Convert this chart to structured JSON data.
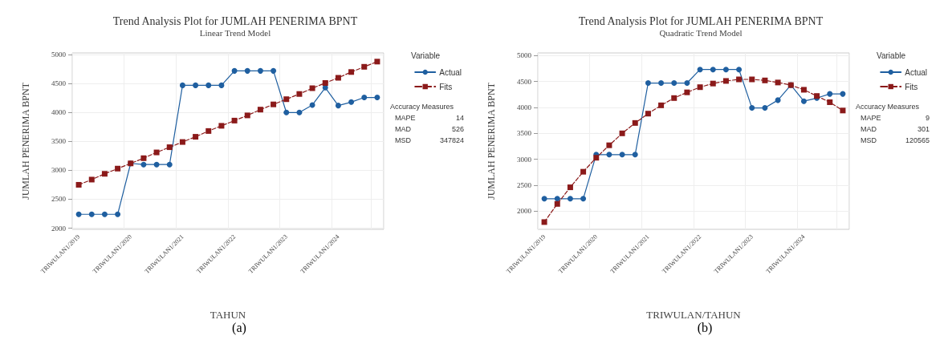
{
  "chart_data": [
    {
      "type": "line",
      "title": "Trend Analysis Plot for JUMLAH PENERIMA BPNT",
      "subtitle": "Linear Trend Model",
      "xlabel": "TAHUN",
      "ylabel": "JUMLAH PENERIMA BPNT",
      "legend_title": "Variable",
      "legend": "right",
      "grid": true,
      "categories": [
        "TRIWULAN1/2019",
        null,
        null,
        null,
        "TRIWULAN1/2020",
        null,
        null,
        null,
        "TRIWULAN1/2021",
        null,
        null,
        null,
        "TRIWULAN1/2022",
        null,
        null,
        null,
        "TRIWULAN1/2023",
        null,
        null,
        null,
        "TRIWULAN1/2024",
        null,
        null,
        null
      ],
      "ylim": [
        1980,
        5030
      ],
      "yticks": [
        2000,
        2500,
        3000,
        3500,
        4000,
        4500,
        5000
      ],
      "series": [
        {
          "name": "Actual",
          "color": "#1f5fa0",
          "marker": "circle",
          "line_style": "solid",
          "values": [
            2240,
            2240,
            2240,
            2240,
            3120,
            3100,
            3100,
            3100,
            4470,
            4470,
            4470,
            4470,
            4720,
            4720,
            4720,
            4720,
            4000,
            4000,
            4130,
            4430,
            4120,
            4180,
            4260,
            4260
          ]
        },
        {
          "name": "Fits",
          "color": "#8b1a1a",
          "marker": "square",
          "line_style": "dashed",
          "values": [
            2750,
            2840,
            2940,
            3030,
            3120,
            3210,
            3310,
            3400,
            3490,
            3580,
            3680,
            3770,
            3860,
            3950,
            4050,
            4140,
            4230,
            4320,
            4420,
            4510,
            4600,
            4700,
            4790,
            4880
          ]
        }
      ],
      "annotations": [
        "Accuracy Measures",
        "MAPE 14",
        "MAD 526",
        "MSD 347824",
        "(a)"
      ]
    },
    {
      "type": "line",
      "title": "Trend Analysis Plot for JUMLAH PENERIMA BPNT",
      "subtitle": "Quadratic Trend Model",
      "xlabel": "TRIWULAN/TAHUN",
      "ylabel": "JUMLAH PENERIMA BPNT",
      "legend_title": "Variable",
      "legend": "right",
      "grid": true,
      "categories": [
        "TRIWULAN1/2019",
        null,
        null,
        null,
        "TRIWULAN1/2020",
        null,
        null,
        null,
        "TRIWULAN1/2021",
        null,
        null,
        null,
        "TRIWULAN1/2022",
        null,
        null,
        null,
        "TRIWULAN1/2023",
        null,
        null,
        null,
        "TRIWULAN1/2024",
        null,
        null,
        null
      ],
      "ylim": [
        1650,
        5050
      ],
      "yticks": [
        2000,
        2500,
        3000,
        3500,
        4000,
        4500,
        5000
      ],
      "series": [
        {
          "name": "Actual",
          "color": "#1f5fa0",
          "marker": "circle",
          "line_style": "solid",
          "values": [
            2240,
            2240,
            2240,
            2240,
            3090,
            3090,
            3090,
            3090,
            4470,
            4470,
            4470,
            4470,
            4730,
            4730,
            4730,
            4730,
            3990,
            3990,
            4140,
            4430,
            4120,
            4180,
            4260,
            4260
          ]
        },
        {
          "name": "Fits",
          "color": "#8b1a1a",
          "marker": "square",
          "line_style": "dashed",
          "values": [
            1790,
            2140,
            2460,
            2760,
            3030,
            3270,
            3500,
            3700,
            3880,
            4040,
            4180,
            4290,
            4390,
            4460,
            4510,
            4540,
            4540,
            4520,
            4480,
            4430,
            4340,
            4220,
            4100,
            3940
          ]
        }
      ],
      "annotations": [
        "Accuracy Measures",
        "MAPE 9",
        "MAD 301",
        "MSD 120565",
        "(b)"
      ]
    }
  ]
}
